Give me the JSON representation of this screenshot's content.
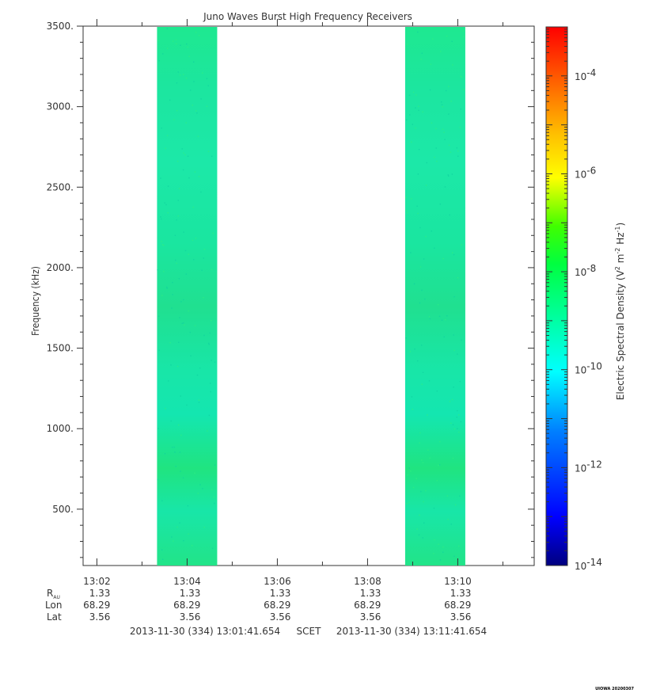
{
  "chart_data": {
    "type": "heatmap",
    "title": "Juno Waves Burst High Frequency Receivers",
    "ylabel": "Frequency (kHz)",
    "ylim": [
      150,
      3500
    ],
    "yticks": [
      500,
      1000,
      1500,
      2000,
      2500,
      3000,
      3500
    ],
    "ytick_labels": [
      "500.",
      "1000.",
      "1500.",
      "2000.",
      "2500.",
      "3000.",
      "3500."
    ],
    "xlim": [
      "13:01:41.654",
      "13:11:41.654"
    ],
    "xticks": [
      "13:02",
      "13:04",
      "13:06",
      "13:08",
      "13:10"
    ],
    "data_intervals": [
      {
        "start": "13:03:20",
        "end": "13:04:40"
      },
      {
        "start": "13:08:50",
        "end": "13:10:10"
      }
    ],
    "colorbar": {
      "label_base": "Electric Spectral Density (V",
      "label_mid": " m",
      "label_mid2": " Hz",
      "label_end": ")",
      "sup_2": "2",
      "sup_m2": "-2",
      "sup_m1": "-1",
      "scale": "log",
      "range": [
        "1e-14",
        "1e-3"
      ],
      "tick_base": "10",
      "tick_exponents": [
        "-4",
        "-6",
        "-8",
        "-10",
        "-12",
        "-14"
      ],
      "colormap": [
        "#00007f",
        "#0000ff",
        "#00ffff",
        "#00ff7f",
        "#00ff00",
        "#ffff00",
        "#ff7f00",
        "#ff0000"
      ]
    },
    "ephemeris": {
      "row_labels": {
        "rau_main": "R",
        "rau_sub": "AU",
        "lon": "Lon",
        "lat": "Lat"
      },
      "rau": [
        "1.33",
        "1.33",
        "1.33",
        "1.33",
        "1.33"
      ],
      "lon": [
        "68.29",
        "68.29",
        "68.29",
        "68.29",
        "68.29"
      ],
      "lat": [
        "3.56",
        "3.56",
        "3.56",
        "3.56",
        "3.56"
      ]
    },
    "time_range": {
      "start": "2013-11-30 (334) 13:01:41.654",
      "label": "SCET",
      "end": "2013-11-30 (334) 13:11:41.654"
    },
    "stamp": "UIOWA 20200307"
  }
}
